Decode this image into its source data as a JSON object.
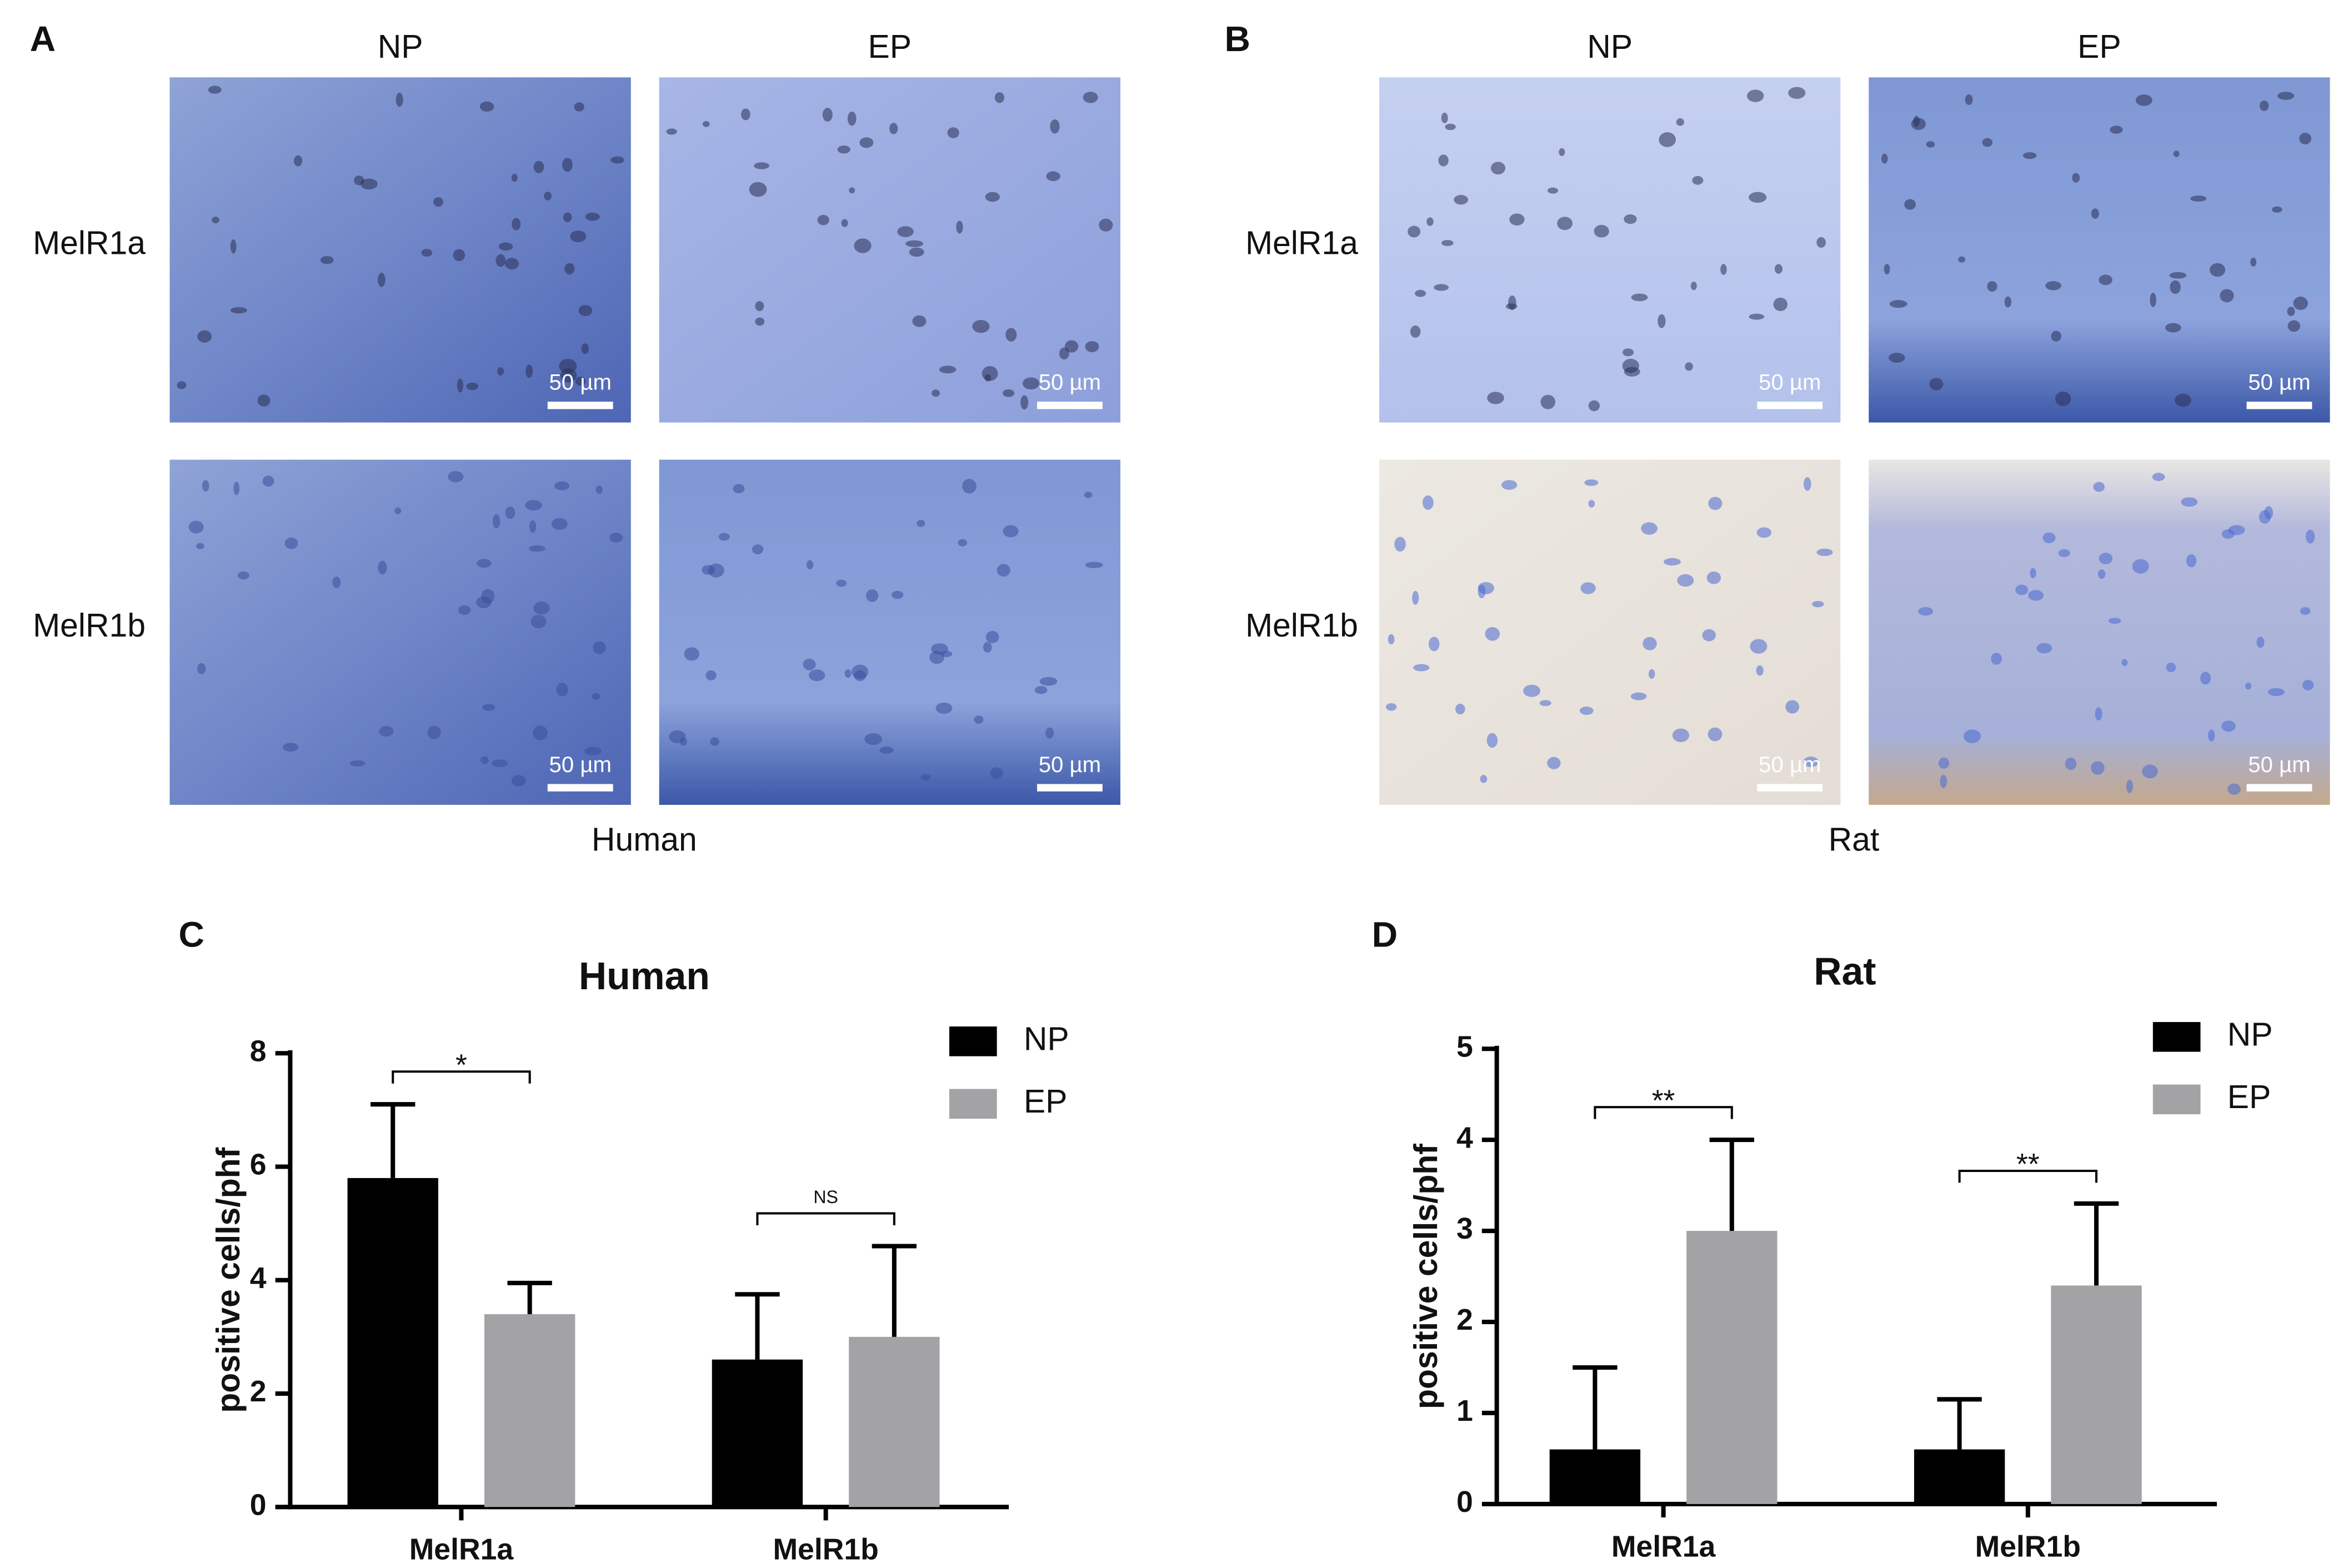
{
  "panels": [
    {
      "letter": "A",
      "columns": [
        "NP",
        "EP"
      ],
      "rows": [
        "MelR1a",
        "MelR1b"
      ],
      "caption": "Human",
      "scale_bar": "50 µm"
    },
    {
      "letter": "B",
      "columns": [
        "NP",
        "EP"
      ],
      "rows": [
        "MelR1a",
        "MelR1b"
      ],
      "caption": "Rat",
      "scale_bar": "50 µm"
    }
  ],
  "chart_data": [
    {
      "type": "bar",
      "letter": "C",
      "title": "Human",
      "ylabel": "positive cells/phf",
      "categories": [
        "MelR1a",
        "MelR1b"
      ],
      "series": [
        {
          "name": "NP",
          "color": "#000000",
          "values": [
            5.8,
            2.6
          ],
          "errors": [
            1.3,
            1.15
          ]
        },
        {
          "name": "EP",
          "color": "#a3a3a6",
          "values": [
            3.4,
            3.0
          ],
          "errors": [
            0.55,
            1.6
          ]
        }
      ],
      "significance": [
        "*",
        "NS"
      ],
      "ylim": [
        0,
        8
      ],
      "yticks": [
        0,
        2,
        4,
        6,
        8
      ]
    },
    {
      "type": "bar",
      "letter": "D",
      "title": "Rat",
      "ylabel": "positive cells/phf",
      "categories": [
        "MelR1a",
        "MelR1b"
      ],
      "series": [
        {
          "name": "NP",
          "color": "#000000",
          "values": [
            0.6,
            0.6
          ],
          "errors": [
            0.9,
            0.55
          ]
        },
        {
          "name": "EP",
          "color": "#a3a3a6",
          "values": [
            3.0,
            2.4
          ],
          "errors": [
            1.0,
            0.9
          ]
        }
      ],
      "significance": [
        "**",
        "**"
      ],
      "ylim": [
        0,
        5
      ],
      "yticks": [
        0,
        1,
        2,
        3,
        4,
        5
      ]
    }
  ]
}
